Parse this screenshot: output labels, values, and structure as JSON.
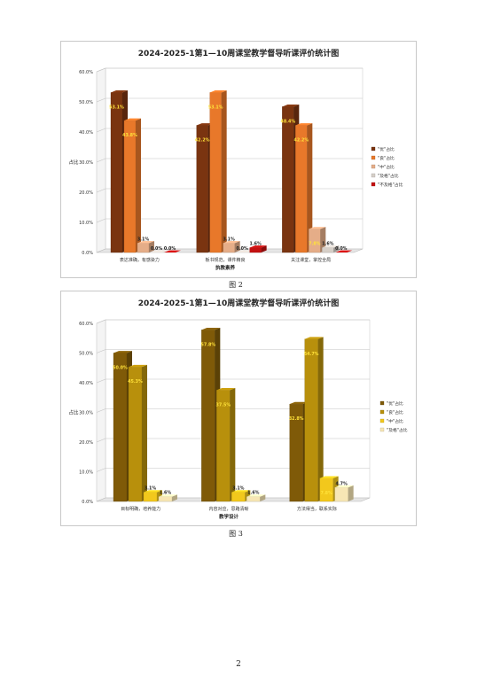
{
  "charts": [
    {
      "title": "2024-2025-1第1—10周课堂教学督导听课评价统计图",
      "caption": "图 2",
      "chart_data": {
        "type": "bar",
        "title": "2024-2025-1第1—10周课堂教学督导听课评价统计图",
        "xlabel": "执教素养",
        "ylabel": "占比",
        "ylim": [
          0,
          60
        ],
        "yticks": [
          "0.0%",
          "10.0%",
          "20.0%",
          "30.0%",
          "40.0%",
          "50.0%",
          "60.0%"
        ],
        "categories": [
          "表达准确，有感染力",
          "板书规范，课件精良",
          "关注课堂，掌控全局"
        ],
        "series": [
          {
            "name": "\"优\"占比",
            "color": "#7a3410",
            "values": [
              53.1,
              42.2,
              48.4
            ],
            "labels": [
              "53.1%",
              "42.2%",
              "48.4%"
            ]
          },
          {
            "name": "\"良\"占比",
            "color": "#e8782a",
            "values": [
              43.8,
              53.1,
              42.2
            ],
            "labels": [
              "43.8%",
              "53.1%",
              "42.2%"
            ]
          },
          {
            "name": "\"中\"占比",
            "color": "#e5ad88",
            "values": [
              3.1,
              3.1,
              7.8
            ],
            "labels": [
              "3.1%",
              "3.1%",
              "7.8%"
            ]
          },
          {
            "name": "\"及格\"占比",
            "color": "#d6cfc8",
            "values": [
              0.0,
              0.0,
              1.6
            ],
            "labels": [
              "0.0%",
              "0.0%",
              "1.6%"
            ]
          },
          {
            "name": "\"不及格\"占比",
            "color": "#c41010",
            "values": [
              0.0,
              1.6,
              0.0
            ],
            "labels": [
              "0.0%",
              "1.6%",
              "0.0%"
            ]
          }
        ],
        "legend": "right",
        "grid": true
      }
    },
    {
      "title": "2024-2025-1第1—10周课堂教学督导听课评价统计图",
      "caption": "图 3",
      "chart_data": {
        "type": "bar",
        "title": "2024-2025-1第1—10周课堂教学督导听课评价统计图",
        "xlabel": "教学设计",
        "ylabel": "占比",
        "ylim": [
          0,
          60
        ],
        "yticks": [
          "0.0%",
          "10.0%",
          "20.0%",
          "30.0%",
          "40.0%",
          "50.0%",
          "60.0%"
        ],
        "categories": [
          "目标明确，培养能力",
          "内容对应，思路清晰",
          "方法得当，联系实际"
        ],
        "series": [
          {
            "name": "\"优\"占比",
            "color": "#7f5a08",
            "values": [
              50.0,
              57.8,
              32.8
            ],
            "labels": [
              "50.0%",
              "57.8%",
              "32.8%"
            ]
          },
          {
            "name": "\"良\"占比",
            "color": "#b8900c",
            "values": [
              45.3,
              37.5,
              54.7
            ],
            "labels": [
              "45.3%",
              "37.5%",
              "54.7%"
            ]
          },
          {
            "name": "\"中\"占比",
            "color": "#f2c81c",
            "values": [
              3.1,
              3.1,
              7.8
            ],
            "labels": [
              "3.1%",
              "3.1%",
              "7.8%"
            ]
          },
          {
            "name": "\"及格\"占比",
            "color": "#f7e6b4",
            "values": [
              1.6,
              1.6,
              4.7
            ],
            "labels": [
              "1.6%",
              "1.6%",
              "4.7%"
            ]
          }
        ],
        "legend": "right",
        "grid": true
      }
    }
  ],
  "page_number": "2"
}
